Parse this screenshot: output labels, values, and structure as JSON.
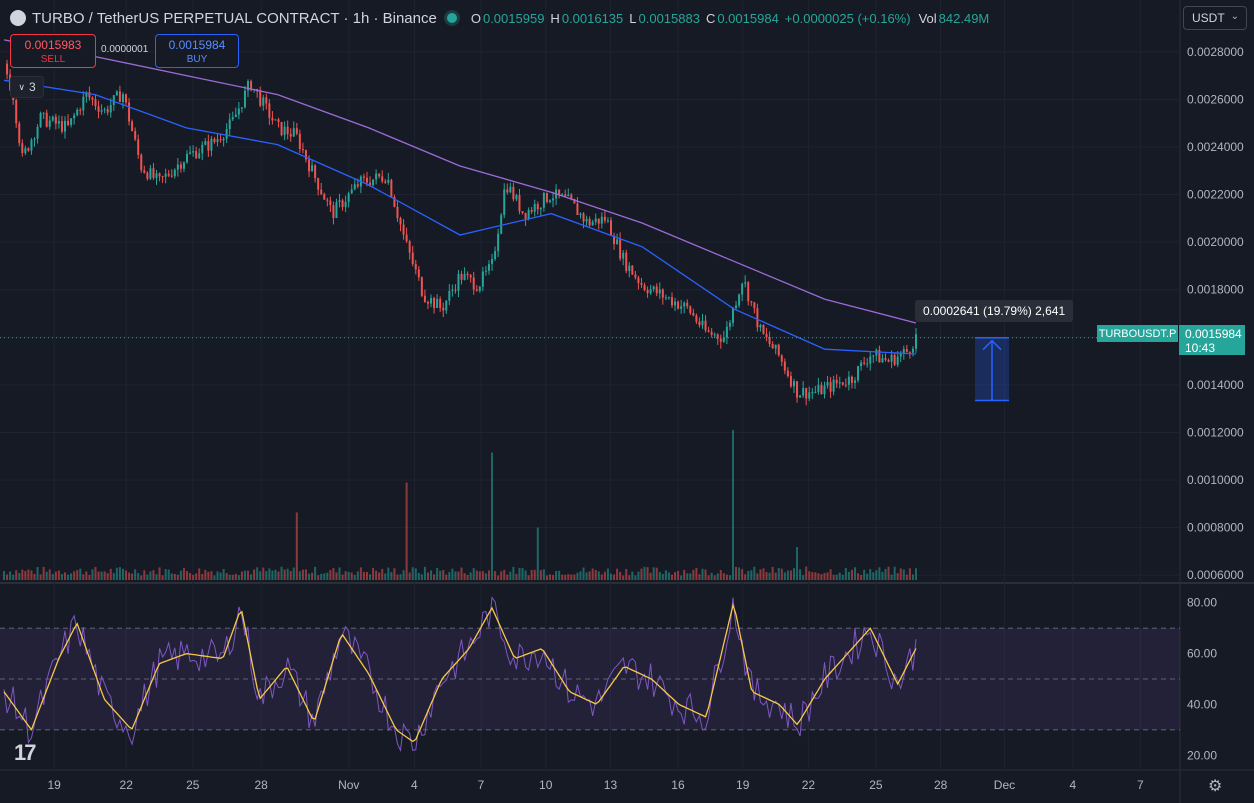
{
  "header": {
    "symbol": "TURBO / TetherUS PERPETUAL CONTRACT · 1h · Binance",
    "o_label": "O",
    "o_value": "0.0015959",
    "h_label": "H",
    "h_value": "0.0016135",
    "l_label": "L",
    "l_value": "0.0015883",
    "c_label": "C",
    "c_value": "0.0015984",
    "change": "+0.0000025 (+0.16%)",
    "vol_label": "Vol",
    "vol_value": "842.49",
    "vol_unit": "M"
  },
  "trade": {
    "sell_price": "0.0015983",
    "sell_label": "SELL",
    "spread": "0.0000001",
    "buy_price": "0.0015984",
    "buy_label": "BUY"
  },
  "indicators_collapse": {
    "icon": "chevron-down-icon",
    "count": "3"
  },
  "currency": {
    "value": "USDT"
  },
  "measure": {
    "label": "0.0002641 (19.79%) 2,641"
  },
  "price_label": {
    "symbol": "TURBOUSDT.P",
    "price": "0.0015984",
    "countdown": "10:43"
  },
  "colors": {
    "up": "#26a69a",
    "down": "#ef5350",
    "ma_fast": "#2962ff",
    "ma_slow": "#9c6bd8",
    "rsi": "#7e57c2",
    "rsi_ma": "#f7c948",
    "background": "#161a25"
  },
  "chart_data": {
    "type": "candlestick",
    "y_ticks": [
      "0.0028000",
      "0.0026000",
      "0.0024000",
      "0.0022000",
      "0.0020000",
      "0.0018000",
      "0.0016000",
      "0.0014000",
      "0.0012000",
      "0.0010000",
      "0.0008000",
      "0.0006000"
    ],
    "ylim": [
      0.00058,
      0.0029
    ],
    "current_price": 0.0015984,
    "price_path": [
      {
        "t": 0,
        "p": 0.00275
      },
      {
        "t": 0.01,
        "p": 0.00262
      },
      {
        "t": 0.02,
        "p": 0.00235
      },
      {
        "t": 0.04,
        "p": 0.00252
      },
      {
        "t": 0.07,
        "p": 0.00248
      },
      {
        "t": 0.09,
        "p": 0.00262
      },
      {
        "t": 0.11,
        "p": 0.00255
      },
      {
        "t": 0.13,
        "p": 0.00263
      },
      {
        "t": 0.15,
        "p": 0.00232
      },
      {
        "t": 0.17,
        "p": 0.00225
      },
      {
        "t": 0.2,
        "p": 0.00236
      },
      {
        "t": 0.23,
        "p": 0.00242
      },
      {
        "t": 0.25,
        "p": 0.0025
      },
      {
        "t": 0.27,
        "p": 0.00267
      },
      {
        "t": 0.3,
        "p": 0.00248
      },
      {
        "t": 0.32,
        "p": 0.00245
      },
      {
        "t": 0.34,
        "p": 0.00228
      },
      {
        "t": 0.36,
        "p": 0.00212
      },
      {
        "t": 0.39,
        "p": 0.00225
      },
      {
        "t": 0.42,
        "p": 0.00228
      },
      {
        "t": 0.44,
        "p": 0.002
      },
      {
        "t": 0.46,
        "p": 0.00178
      },
      {
        "t": 0.48,
        "p": 0.00172
      },
      {
        "t": 0.5,
        "p": 0.00186
      },
      {
        "t": 0.52,
        "p": 0.00182
      },
      {
        "t": 0.535,
        "p": 0.0019
      },
      {
        "t": 0.55,
        "p": 0.00225
      },
      {
        "t": 0.57,
        "p": 0.00212
      },
      {
        "t": 0.6,
        "p": 0.0022
      },
      {
        "t": 0.62,
        "p": 0.00217
      },
      {
        "t": 0.64,
        "p": 0.00208
      },
      {
        "t": 0.66,
        "p": 0.0021
      },
      {
        "t": 0.68,
        "p": 0.00192
      },
      {
        "t": 0.7,
        "p": 0.00182
      },
      {
        "t": 0.72,
        "p": 0.00178
      },
      {
        "t": 0.75,
        "p": 0.00172
      },
      {
        "t": 0.77,
        "p": 0.00162
      },
      {
        "t": 0.79,
        "p": 0.0016
      },
      {
        "t": 0.81,
        "p": 0.00185
      },
      {
        "t": 0.83,
        "p": 0.00162
      },
      {
        "t": 0.85,
        "p": 0.00152
      },
      {
        "t": 0.87,
        "p": 0.00137
      },
      {
        "t": 0.89,
        "p": 0.00137
      },
      {
        "t": 0.91,
        "p": 0.0014
      },
      {
        "t": 0.93,
        "p": 0.00143
      },
      {
        "t": 0.95,
        "p": 0.00153
      },
      {
        "t": 0.97,
        "p": 0.0015
      },
      {
        "t": 0.99,
        "p": 0.00154
      },
      {
        "t": 1.0,
        "p": 0.0016
      }
    ],
    "ma_fast": [
      {
        "t": 0,
        "p": 0.00268
      },
      {
        "t": 0.1,
        "p": 0.00262
      },
      {
        "t": 0.2,
        "p": 0.00248
      },
      {
        "t": 0.3,
        "p": 0.00241
      },
      {
        "t": 0.4,
        "p": 0.00224
      },
      {
        "t": 0.5,
        "p": 0.00203
      },
      {
        "t": 0.6,
        "p": 0.00212
      },
      {
        "t": 0.7,
        "p": 0.00198
      },
      {
        "t": 0.8,
        "p": 0.00172
      },
      {
        "t": 0.9,
        "p": 0.00155
      },
      {
        "t": 1.0,
        "p": 0.00153
      }
    ],
    "ma_slow": [
      {
        "t": 0,
        "p": 0.00285
      },
      {
        "t": 0.1,
        "p": 0.00278
      },
      {
        "t": 0.2,
        "p": 0.0027
      },
      {
        "t": 0.3,
        "p": 0.00262
      },
      {
        "t": 0.4,
        "p": 0.00248
      },
      {
        "t": 0.5,
        "p": 0.00232
      },
      {
        "t": 0.6,
        "p": 0.00221
      },
      {
        "t": 0.7,
        "p": 0.00208
      },
      {
        "t": 0.8,
        "p": 0.00192
      },
      {
        "t": 0.9,
        "p": 0.00176
      },
      {
        "t": 1.0,
        "p": 0.00166
      }
    ],
    "volume_spikes": [
      {
        "t": 0.32,
        "v": 0.45
      },
      {
        "t": 0.44,
        "v": 0.65
      },
      {
        "t": 0.535,
        "v": 0.85
      },
      {
        "t": 0.585,
        "v": 0.35
      },
      {
        "t": 0.8,
        "v": 1.0
      },
      {
        "t": 0.87,
        "v": 0.22
      }
    ],
    "measure_range": [
      0.0013343,
      0.0015984
    ],
    "rsi": {
      "y_ticks": [
        "80.00",
        "60.00",
        "40.00",
        "20.00"
      ],
      "ylim": [
        15,
        85
      ],
      "bands": [
        70,
        50,
        30
      ],
      "path": [
        {
          "t": 0,
          "v": 45
        },
        {
          "t": 0.03,
          "v": 30
        },
        {
          "t": 0.06,
          "v": 58
        },
        {
          "t": 0.08,
          "v": 72
        },
        {
          "t": 0.11,
          "v": 42
        },
        {
          "t": 0.14,
          "v": 30
        },
        {
          "t": 0.17,
          "v": 56
        },
        {
          "t": 0.2,
          "v": 60
        },
        {
          "t": 0.24,
          "v": 58
        },
        {
          "t": 0.26,
          "v": 78
        },
        {
          "t": 0.28,
          "v": 42
        },
        {
          "t": 0.31,
          "v": 55
        },
        {
          "t": 0.34,
          "v": 33
        },
        {
          "t": 0.37,
          "v": 68
        },
        {
          "t": 0.4,
          "v": 52
        },
        {
          "t": 0.43,
          "v": 30
        },
        {
          "t": 0.45,
          "v": 25
        },
        {
          "t": 0.48,
          "v": 50
        },
        {
          "t": 0.51,
          "v": 62
        },
        {
          "t": 0.535,
          "v": 78
        },
        {
          "t": 0.56,
          "v": 58
        },
        {
          "t": 0.59,
          "v": 62
        },
        {
          "t": 0.62,
          "v": 45
        },
        {
          "t": 0.65,
          "v": 40
        },
        {
          "t": 0.68,
          "v": 55
        },
        {
          "t": 0.71,
          "v": 50
        },
        {
          "t": 0.74,
          "v": 40
        },
        {
          "t": 0.77,
          "v": 35
        },
        {
          "t": 0.8,
          "v": 80
        },
        {
          "t": 0.82,
          "v": 45
        },
        {
          "t": 0.85,
          "v": 40
        },
        {
          "t": 0.87,
          "v": 32
        },
        {
          "t": 0.9,
          "v": 50
        },
        {
          "t": 0.93,
          "v": 62
        },
        {
          "t": 0.95,
          "v": 70
        },
        {
          "t": 0.98,
          "v": 48
        },
        {
          "t": 1.0,
          "v": 62
        }
      ]
    },
    "x_ticks": [
      {
        "label": "19",
        "t": 0.055
      },
      {
        "label": "22",
        "t": 0.134
      },
      {
        "label": "25",
        "t": 0.207
      },
      {
        "label": "28",
        "t": 0.282
      },
      {
        "label": "Nov",
        "t": 0.378
      },
      {
        "label": "4",
        "t": 0.45
      },
      {
        "label": "7",
        "t": 0.523
      },
      {
        "label": "10",
        "t": 0.594
      },
      {
        "label": "13",
        "t": 0.665
      },
      {
        "label": "16",
        "t": 0.739
      },
      {
        "label": "19",
        "t": 0.81
      },
      {
        "label": "22",
        "t": 0.882
      },
      {
        "label": "25",
        "t": 0.956
      },
      {
        "label": "28",
        "t": 1.027
      },
      {
        "label": "Dec",
        "t": 1.097
      },
      {
        "label": "4",
        "t": 1.172
      },
      {
        "label": "7",
        "t": 1.246
      }
    ]
  }
}
